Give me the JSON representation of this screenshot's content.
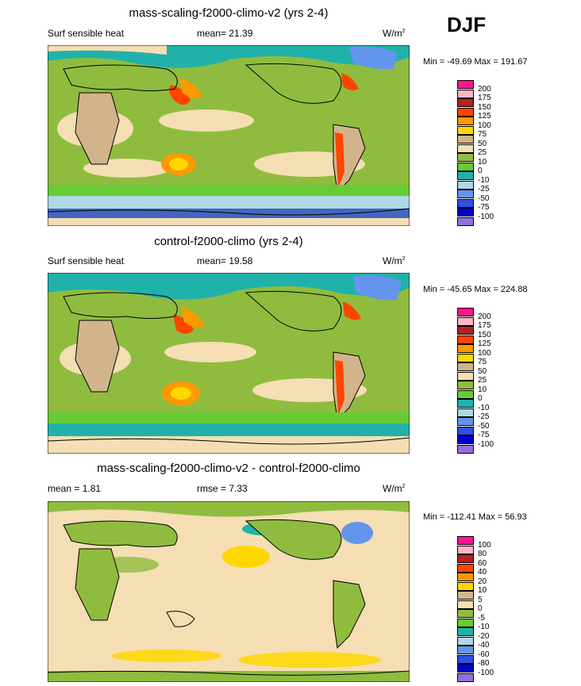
{
  "season": "DJF",
  "panels": [
    {
      "title": "mass-scaling-f2000-climo-v2 (yrs 2-4)",
      "left_label": "Surf sensible heat",
      "stat": "mean=  21.39",
      "units_base": "W/m",
      "units_sup": "2",
      "minmax": "Min = -49.69 Max = 191.67",
      "levels": [
        "200",
        "175",
        "150",
        "125",
        "100",
        "75",
        "50",
        "25",
        "10",
        "0",
        "-10",
        "-25",
        "-50",
        "-75",
        "-100"
      ],
      "colors": [
        "#ff1493",
        "#ffb6c1",
        "#b22222",
        "#ff4500",
        "#ff9900",
        "#ffd700",
        "#d2b48c",
        "#f5deb3",
        "#8fbc3f",
        "#66cc33",
        "#20b2aa",
        "#add8e6",
        "#6495ed",
        "#3050e0",
        "#0000cd",
        "#9370db"
      ]
    },
    {
      "title": "control-f2000-climo (yrs 2-4)",
      "left_label": "Surf sensible heat",
      "stat": "mean=  19.58",
      "units_base": "W/m",
      "units_sup": "2",
      "minmax": "Min = -45.65 Max = 224.88",
      "levels": [
        "200",
        "175",
        "150",
        "125",
        "100",
        "75",
        "50",
        "25",
        "10",
        "0",
        "-10",
        "-25",
        "-50",
        "-75",
        "-100"
      ],
      "colors": [
        "#ff1493",
        "#ffb6c1",
        "#b22222",
        "#ff4500",
        "#ff9900",
        "#ffd700",
        "#d2b48c",
        "#f5deb3",
        "#8fbc3f",
        "#66cc33",
        "#20b2aa",
        "#add8e6",
        "#6495ed",
        "#3050e0",
        "#0000cd",
        "#9370db"
      ]
    },
    {
      "title": "mass-scaling-f2000-climo-v2 - control-f2000-climo",
      "left_label": "mean =   1.81",
      "stat": "rmse =   7.33",
      "units_base": "W/m",
      "units_sup": "2",
      "minmax": "Min = -112.41 Max =  56.93",
      "levels": [
        "100",
        "80",
        "60",
        "40",
        "20",
        "10",
        "5",
        "0",
        "-5",
        "-10",
        "-20",
        "-40",
        "-60",
        "-80",
        "-100"
      ],
      "colors": [
        "#ff1493",
        "#ffb6c1",
        "#b22222",
        "#ff4500",
        "#ff9900",
        "#ffd700",
        "#d2b48c",
        "#f5deb3",
        "#8fbc3f",
        "#66cc33",
        "#20b2aa",
        "#add8e6",
        "#6495ed",
        "#3050e0",
        "#0000cd",
        "#9370db"
      ]
    }
  ]
}
